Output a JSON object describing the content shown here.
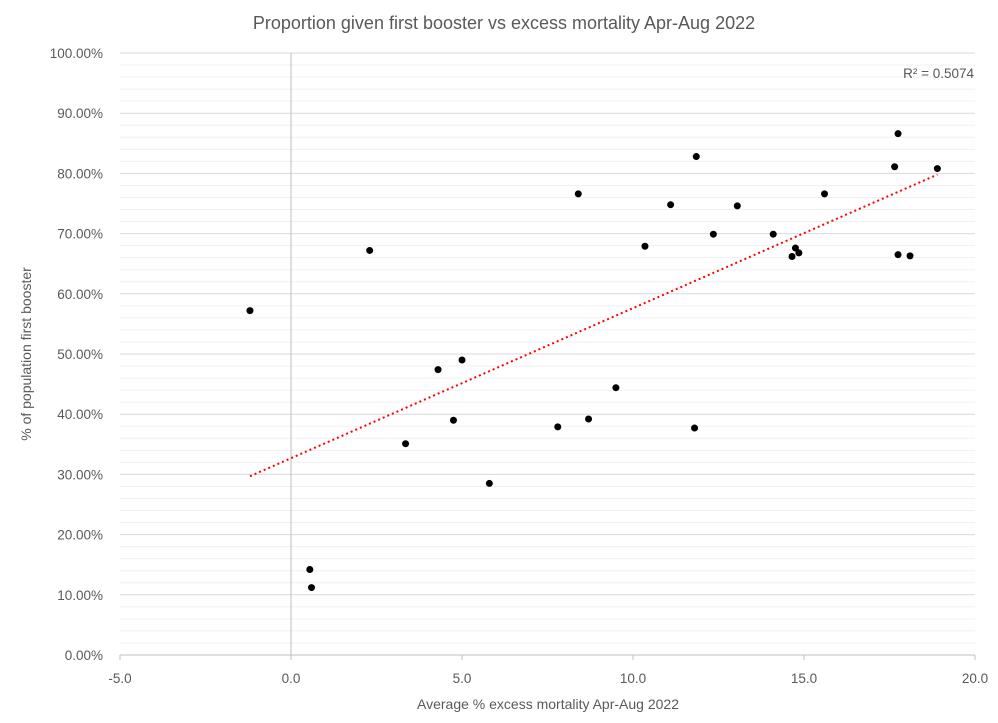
{
  "chart_data": {
    "type": "scatter",
    "title": "Proportion given first booster vs excess mortality Apr-Aug 2022",
    "xlabel": "Average % excess mortality Apr-Aug 2022",
    "ylabel": "% of population first booster",
    "xlim": [
      -5.0,
      20.0
    ],
    "ylim": [
      0,
      100
    ],
    "x_ticks": [
      -5.0,
      0.0,
      5.0,
      10.0,
      15.0,
      20.0
    ],
    "x_tick_labels": [
      "-5.0",
      "0.0",
      "5.0",
      "10.0",
      "15.0",
      "20.0"
    ],
    "y_ticks": [
      0,
      10,
      20,
      30,
      40,
      50,
      60,
      70,
      80,
      90,
      100
    ],
    "y_tick_labels": [
      "0.00%",
      "10.00%",
      "20.00%",
      "30.00%",
      "40.00%",
      "50.00%",
      "60.00%",
      "70.00%",
      "80.00%",
      "90.00%",
      "100.00%"
    ],
    "grid": "horizontal major and minor gridlines",
    "r_squared_label": "R² = 0.5074",
    "trendline": {
      "type": "linear",
      "x": [
        -1.2,
        18.9
      ],
      "y": [
        29.7,
        79.8
      ]
    },
    "colors": {
      "points": "#000000",
      "trendline": "#ff0000",
      "grid": "#d9d9d9",
      "text": "#595959"
    },
    "points": [
      {
        "x": -1.2,
        "y": 57.2
      },
      {
        "x": 0.55,
        "y": 14.2
      },
      {
        "x": 0.6,
        "y": 11.2
      },
      {
        "x": 2.3,
        "y": 67.2
      },
      {
        "x": 3.35,
        "y": 35.1
      },
      {
        "x": 4.3,
        "y": 47.4
      },
      {
        "x": 4.75,
        "y": 39.0
      },
      {
        "x": 5.0,
        "y": 49.0
      },
      {
        "x": 5.8,
        "y": 28.5
      },
      {
        "x": 7.8,
        "y": 37.9
      },
      {
        "x": 8.4,
        "y": 76.6
      },
      {
        "x": 8.7,
        "y": 39.2
      },
      {
        "x": 9.5,
        "y": 44.4
      },
      {
        "x": 10.35,
        "y": 67.9
      },
      {
        "x": 11.1,
        "y": 74.8
      },
      {
        "x": 11.8,
        "y": 37.7
      },
      {
        "x": 11.85,
        "y": 82.8
      },
      {
        "x": 12.35,
        "y": 69.9
      },
      {
        "x": 13.05,
        "y": 74.6
      },
      {
        "x": 14.1,
        "y": 69.9
      },
      {
        "x": 14.65,
        "y": 66.2
      },
      {
        "x": 14.75,
        "y": 67.6
      },
      {
        "x": 14.85,
        "y": 66.8
      },
      {
        "x": 15.6,
        "y": 76.6
      },
      {
        "x": 17.65,
        "y": 81.1
      },
      {
        "x": 17.75,
        "y": 66.5
      },
      {
        "x": 17.75,
        "y": 86.6
      },
      {
        "x": 18.1,
        "y": 66.3
      },
      {
        "x": 18.9,
        "y": 80.8
      }
    ]
  }
}
